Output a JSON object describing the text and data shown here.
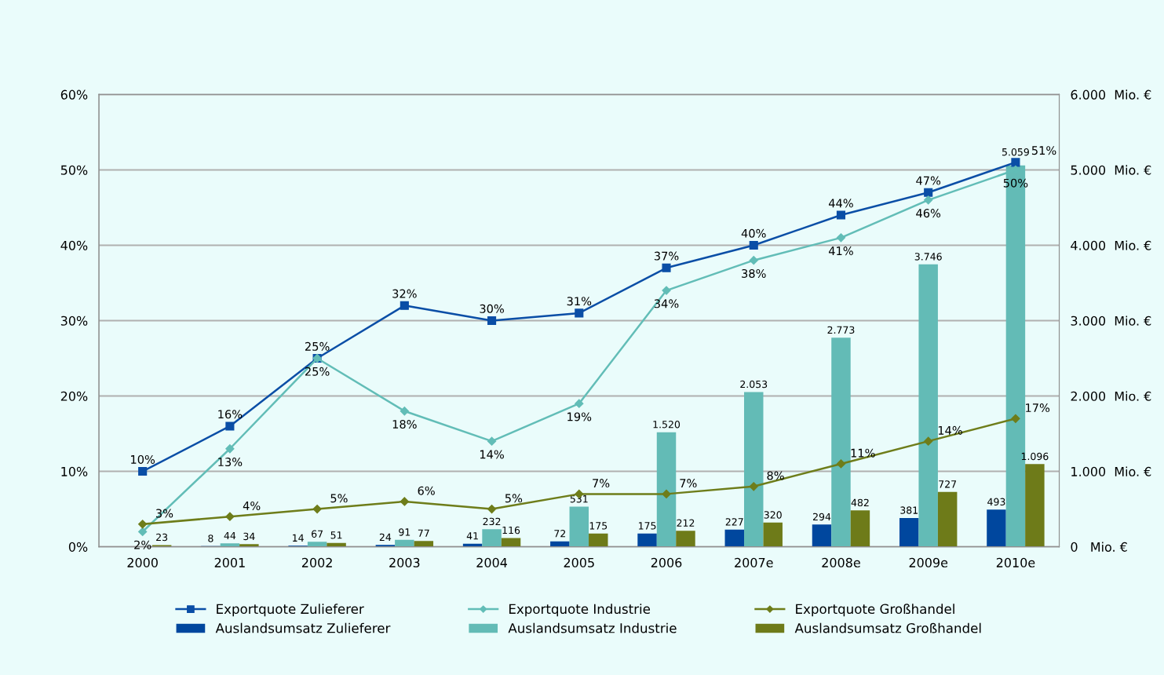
{
  "chart_data": {
    "type": "bar",
    "categories": [
      "2000",
      "2001",
      "2002",
      "2003",
      "2004",
      "2005",
      "2006",
      "2007e",
      "2008e",
      "2009e",
      "2010e"
    ],
    "series": [
      {
        "name": "Exportquote Zulieferer",
        "type": "line",
        "axis": "y",
        "color": "#0a4ea6",
        "marker": "square",
        "values": [
          10,
          16,
          25,
          32,
          30,
          31,
          37,
          40,
          44,
          47,
          51
        ],
        "value_labels": [
          "10%",
          "16%",
          "25%",
          "32%",
          "30%",
          "31%",
          "37%",
          "40%",
          "44%",
          "47%",
          "51%"
        ]
      },
      {
        "name": "Auslandsumsatz Zulieferer",
        "axis": "y2",
        "color": "#00479e",
        "values": [
          null,
          8,
          14,
          24,
          41,
          72,
          175,
          227,
          294,
          381,
          493
        ],
        "value_labels": [
          null,
          "8",
          "14",
          "24",
          "41",
          "72",
          "175",
          "227",
          "294",
          "381",
          "493"
        ]
      },
      {
        "name": "Exportquote Industrie",
        "type": "line",
        "axis": "y",
        "color": "#62bdb7",
        "marker": "diamond",
        "values": [
          2,
          13,
          25,
          18,
          14,
          19,
          34,
          38,
          41,
          46,
          50
        ],
        "value_labels": [
          "2%",
          "13%",
          "25%",
          "18%",
          "14%",
          "19%",
          "34%",
          "38%",
          "41%",
          "46%",
          "50%"
        ]
      },
      {
        "name": "Auslandsumsatz Industrie",
        "axis": "y2",
        "color": "#63bbb6",
        "values": [
          null,
          44,
          67,
          91,
          232,
          531,
          1520,
          2053,
          2773,
          3746,
          5059
        ],
        "value_labels": [
          null,
          "44",
          "67",
          "91",
          "232",
          "531",
          "1.520",
          "2.053",
          "2.773",
          "3.746",
          "5.059"
        ]
      },
      {
        "name": "Exportquote Großhandel",
        "type": "line",
        "axis": "y",
        "color": "#6e7d1a",
        "marker": "diamond",
        "values": [
          3,
          4,
          5,
          6,
          5,
          7,
          7,
          8,
          11,
          14,
          17
        ],
        "value_labels": [
          "3%",
          "4%",
          "5%",
          "6%",
          "5%",
          "7%",
          "7%",
          "8%",
          "11%",
          "14%",
          "17%"
        ]
      },
      {
        "name": "Auslandsumsatz Großhandel",
        "axis": "y2",
        "color": "#6e7b19",
        "values": [
          23,
          34,
          51,
          77,
          116,
          175,
          212,
          320,
          482,
          727,
          1096
        ],
        "value_labels": [
          "23",
          "34",
          "51",
          "77",
          "116",
          "175",
          "212",
          "320",
          "482",
          "727",
          "1.096"
        ]
      }
    ],
    "ylim": [
      0,
      60
    ],
    "yticks": [
      {
        "value": 0,
        "label": "0%"
      },
      {
        "value": 10,
        "label": "10%"
      },
      {
        "value": 20,
        "label": "20%"
      },
      {
        "value": 30,
        "label": "30%"
      },
      {
        "value": 40,
        "label": "40%"
      },
      {
        "value": 50,
        "label": "50%"
      },
      {
        "value": 60,
        "label": "60%"
      }
    ],
    "y2lim": [
      0,
      6000
    ],
    "y2ticks": [
      {
        "value": 0,
        "label": "0   Mio. €"
      },
      {
        "value": 1000,
        "label": "1.000  Mio. €"
      },
      {
        "value": 2000,
        "label": "2.000  Mio. €"
      },
      {
        "value": 3000,
        "label": "3.000  Mio. €"
      },
      {
        "value": 4000,
        "label": "4.000  Mio. €"
      },
      {
        "value": 5000,
        "label": "5.000  Mio. €"
      },
      {
        "value": 6000,
        "label": "6.000  Mio. €"
      }
    ],
    "grid": "y",
    "legend": "bottom"
  }
}
